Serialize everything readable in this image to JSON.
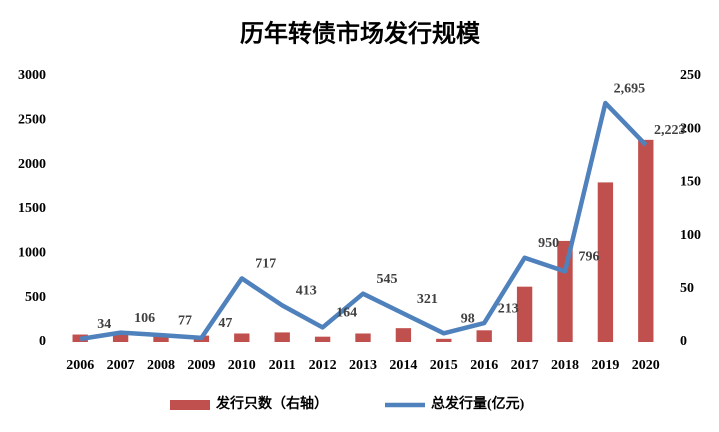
{
  "chart_data": {
    "type": "bar-line",
    "title": "历年转债市场发行规模",
    "categories": [
      "2006",
      "2007",
      "2008",
      "2009",
      "2010",
      "2011",
      "2012",
      "2013",
      "2014",
      "2015",
      "2016",
      "2017",
      "2018",
      "2019",
      "2020"
    ],
    "series": [
      {
        "name": "发行只数（右轴）",
        "type": "bar",
        "axis": "y2",
        "color": "#c0504d",
        "values": [
          7,
          7,
          5,
          6,
          8,
          9,
          5,
          8,
          13,
          3,
          11,
          52,
          95,
          150,
          190
        ]
      },
      {
        "name": "总发行量(亿元)",
        "type": "line",
        "axis": "y",
        "color": "#4f81bd",
        "values": [
          34,
          106,
          77,
          47,
          717,
          413,
          164,
          545,
          321,
          98,
          213,
          950,
          796,
          2695,
          2223
        ],
        "value_labels": [
          "34",
          "106",
          "77",
          "47",
          "717",
          "413",
          "164",
          "545",
          "321",
          "98",
          "213",
          "950",
          "796",
          "2,695",
          "2,223"
        ]
      }
    ],
    "ylim": [
      0,
      3000
    ],
    "yticks": [
      0,
      500,
      1000,
      1500,
      2000,
      2500,
      3000
    ],
    "y2lim": [
      0,
      250
    ],
    "y2ticks": [
      0,
      50,
      100,
      150,
      200,
      250
    ]
  }
}
